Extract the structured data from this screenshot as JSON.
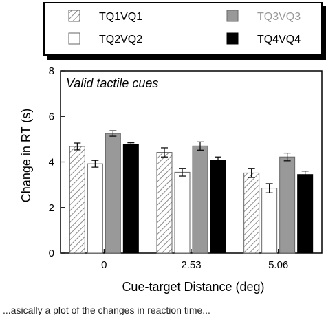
{
  "chart_data": {
    "type": "bar",
    "panel_label": "Valid tactile cues",
    "xlabel": "Cue-target Distance (deg)",
    "ylabel": "Change in RT (s)",
    "ylim": [
      0,
      8
    ],
    "yticks": [
      0,
      2,
      4,
      6,
      8
    ],
    "categories": [
      "0",
      "2.53",
      "5.06"
    ],
    "legend_placement": "top",
    "series": [
      {
        "name": "TQ1VQ1",
        "style": "hatched",
        "color": "#d0d0d0",
        "values": [
          4.68,
          4.42,
          3.52
        ],
        "errors": [
          0.15,
          0.2,
          0.2
        ]
      },
      {
        "name": "TQ2VQ2",
        "style": "open",
        "color": "#ffffff",
        "values": [
          3.92,
          3.55,
          2.85
        ],
        "errors": [
          0.15,
          0.17,
          0.2
        ]
      },
      {
        "name": "TQ3VQ3",
        "style": "gray",
        "color": "#999999",
        "values": [
          5.25,
          4.7,
          4.22
        ],
        "errors": [
          0.12,
          0.18,
          0.17
        ]
      },
      {
        "name": "TQ4VQ4",
        "style": "black",
        "color": "#000000",
        "values": [
          4.77,
          4.07,
          3.45
        ],
        "errors": [
          0.07,
          0.15,
          0.15
        ]
      }
    ],
    "legend_label_color_gray": "#9a9a9a"
  },
  "caption_fragment": "...asically a plot of the changes in reaction time..."
}
